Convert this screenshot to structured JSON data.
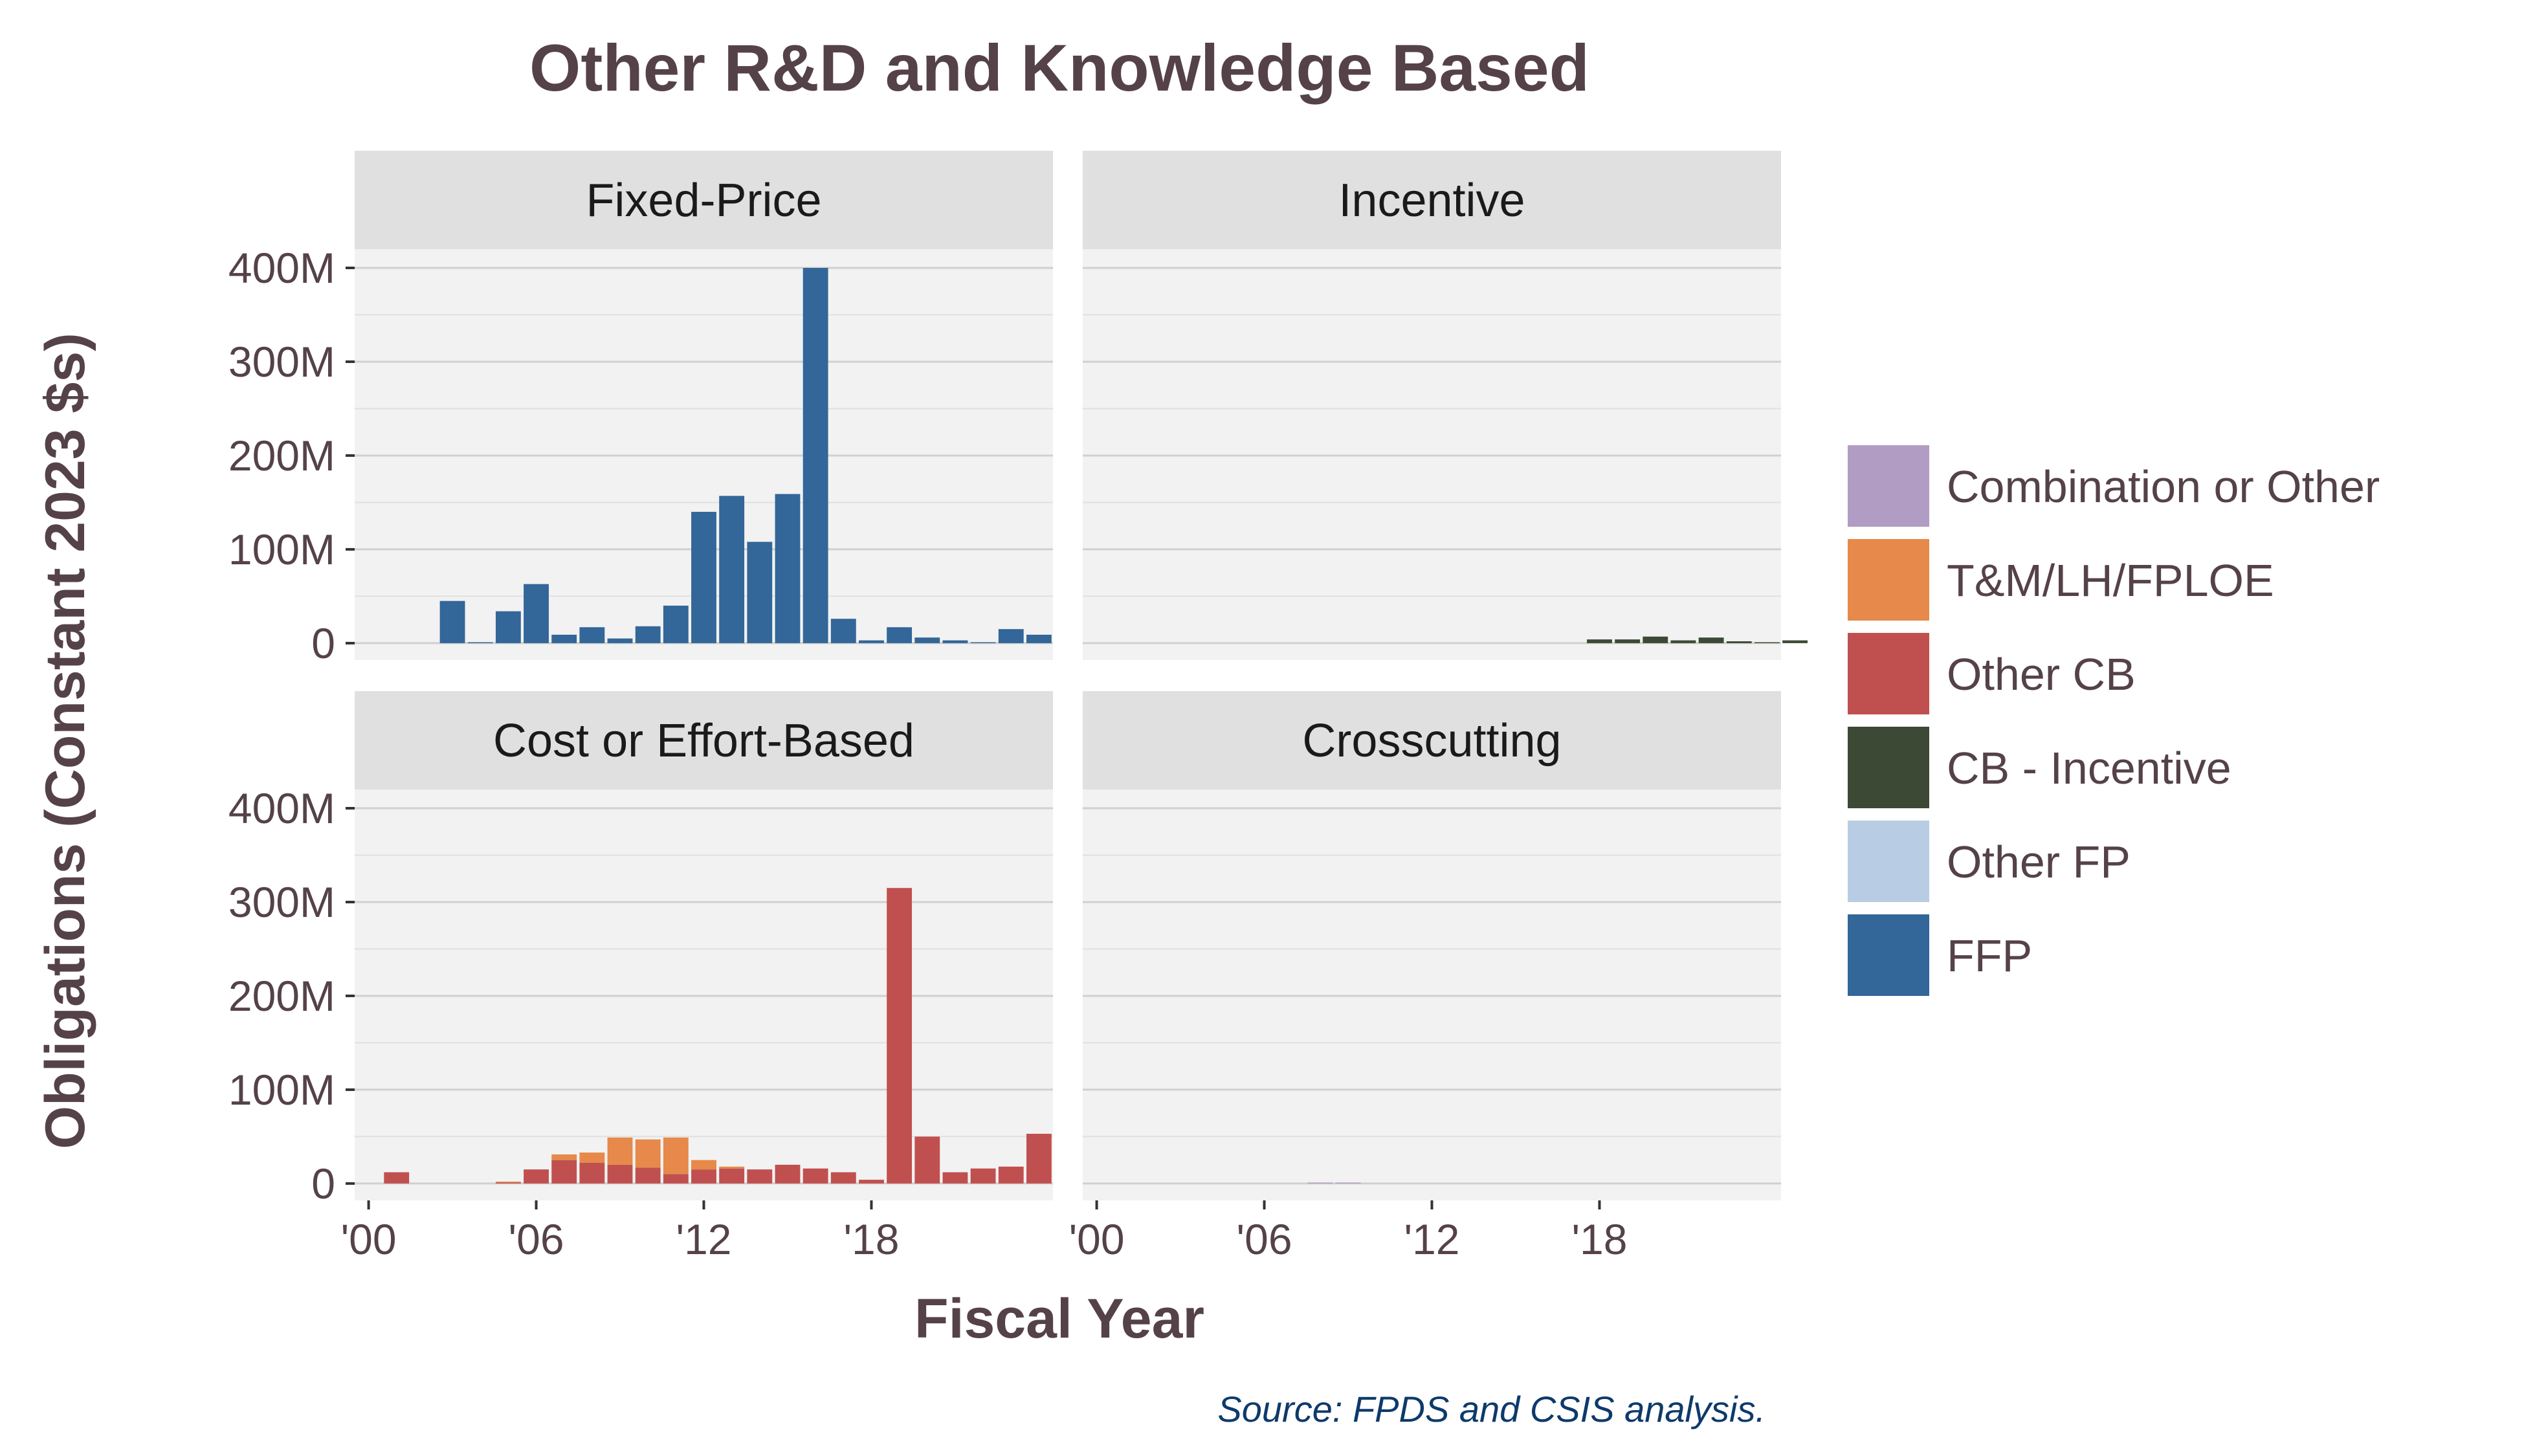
{
  "chart_data": {
    "type": "bar",
    "stacked": true,
    "title": "Other R&D and Knowledge Based",
    "xlabel": "Fiscal Year",
    "ylabel": "Obligations (Constant 2023 $s)",
    "caption": "Source: FPDS and CSIS analysis.",
    "x_tick_labels": [
      "'00",
      "'06",
      "'12",
      "'18"
    ],
    "x_tick_values": [
      2000,
      2006,
      2012,
      2018
    ],
    "xlim": [
      1999.5,
      2024.5
    ],
    "y_tick_labels": [
      "0",
      "100M",
      "200M",
      "300M",
      "400M"
    ],
    "y_tick_values": [
      0,
      100,
      200,
      300,
      400
    ],
    "y_units": "millions",
    "ylim": [
      -18,
      420
    ],
    "grid": true,
    "legend_placement": "right",
    "legend": [
      {
        "name": "Combination or Other",
        "color": "#b19cc4"
      },
      {
        "name": "T&M/LH/FPLOE",
        "color": "#e6894a"
      },
      {
        "name": "Other CB",
        "color": "#c0504f"
      },
      {
        "name": "CB - Incentive",
        "color": "#3c4a35"
      },
      {
        "name": "Other FP",
        "color": "#b8cde4"
      },
      {
        "name": "FFP",
        "color": "#336699"
      }
    ],
    "panels": [
      {
        "label": "Fixed-Price",
        "series": [
          {
            "name": "FFP",
            "color": "#336699",
            "points": [
              [
                2003,
                45
              ],
              [
                2004,
                1
              ],
              [
                2005,
                34
              ],
              [
                2006,
                63
              ],
              [
                2007,
                9
              ],
              [
                2008,
                17
              ],
              [
                2009,
                5
              ],
              [
                2010,
                18
              ],
              [
                2011,
                40
              ],
              [
                2012,
                140
              ],
              [
                2013,
                157
              ],
              [
                2014,
                108
              ],
              [
                2015,
                159
              ],
              [
                2016,
                400
              ],
              [
                2017,
                26
              ],
              [
                2018,
                3
              ],
              [
                2019,
                17
              ],
              [
                2020,
                6
              ],
              [
                2021,
                3
              ],
              [
                2022,
                1
              ],
              [
                2023,
                15
              ],
              [
                2024,
                9
              ]
            ]
          }
        ]
      },
      {
        "label": "Incentive",
        "series": [
          {
            "name": "CB - Incentive",
            "color": "#3c4a35",
            "points": [
              [
                2018,
                4
              ],
              [
                2019,
                4
              ],
              [
                2020,
                7
              ],
              [
                2021,
                3
              ],
              [
                2022,
                6
              ],
              [
                2023,
                2
              ],
              [
                2024,
                1
              ],
              [
                2025,
                3
              ]
            ]
          }
        ]
      },
      {
        "label": "Cost or Effort-Based",
        "series": [
          {
            "name": "Other CB",
            "color": "#c0504f",
            "points": [
              [
                2001,
                12
              ],
              [
                2005,
                1
              ],
              [
                2006,
                15
              ],
              [
                2007,
                25
              ],
              [
                2008,
                22
              ],
              [
                2009,
                20
              ],
              [
                2010,
                17
              ],
              [
                2011,
                10
              ],
              [
                2012,
                15
              ],
              [
                2013,
                16
              ],
              [
                2014,
                15
              ],
              [
                2015,
                20
              ],
              [
                2016,
                16
              ],
              [
                2017,
                12
              ],
              [
                2018,
                4
              ],
              [
                2019,
                315
              ],
              [
                2020,
                50
              ],
              [
                2021,
                12
              ],
              [
                2022,
                16
              ],
              [
                2023,
                18
              ],
              [
                2024,
                53
              ]
            ]
          },
          {
            "name": "T&M/LH/FPLOE",
            "color": "#e6894a",
            "points": [
              [
                2005,
                1
              ],
              [
                2007,
                6
              ],
              [
                2008,
                11
              ],
              [
                2009,
                29
              ],
              [
                2010,
                30
              ],
              [
                2011,
                39
              ],
              [
                2012,
                10
              ],
              [
                2013,
                2
              ]
            ]
          }
        ]
      },
      {
        "label": "Crosscutting",
        "series": [
          {
            "name": "Combination or Other",
            "color": "#b19cc4",
            "points": [
              [
                2008,
                1
              ],
              [
                2009,
                1
              ]
            ]
          }
        ]
      }
    ]
  }
}
